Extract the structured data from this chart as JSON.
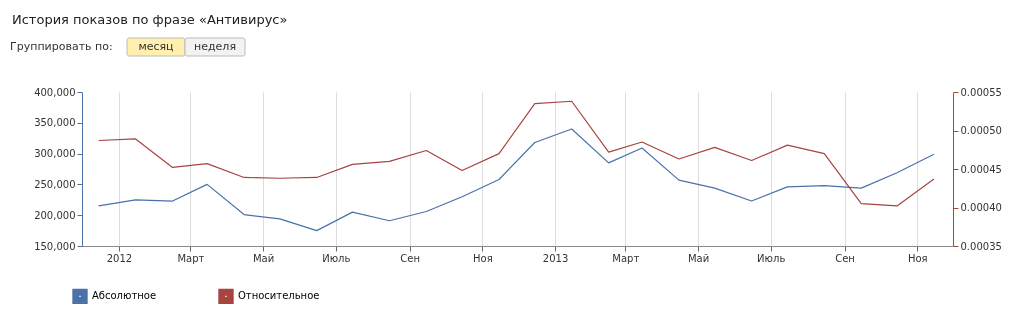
{
  "chart_data": {
    "type": "line",
    "title": "История показов по фразе «Антивирус»",
    "annotations": [
      "Группировать по:",
      "месяц",
      "неделя"
    ],
    "x": [
      "2011-12-15",
      "2012-01-15",
      "2012-02-15",
      "2012-03-15",
      "2012-04-15",
      "2012-05-15",
      "2012-06-15",
      "2012-07-15",
      "2012-08-15",
      "2012-09-15",
      "2012-10-15",
      "2012-11-15",
      "2012-12-15",
      "2013-01-15",
      "2013-02-15",
      "2013-03-15",
      "2013-04-15",
      "2013-05-15",
      "2013-06-15",
      "2013-07-15",
      "2013-08-15",
      "2013-09-15",
      "2013-10-15",
      "2013-11-15"
    ],
    "series": [
      {
        "name": "Абсолютное",
        "color": "#4a72a8",
        "values": [
          215000,
          225000,
          223000,
          250000,
          201000,
          194000,
          175000,
          205000,
          191000,
          206000,
          230000,
          258000,
          318000,
          340000,
          285000,
          309000,
          257000,
          244000,
          223000,
          246000,
          248000,
          244000,
          269000,
          299000
        ]
      },
      {
        "name": "Относительное",
        "color": "#a8443f",
        "axis": "y2",
        "values": [
          0.000487,
          0.000489,
          0.000452,
          0.000457,
          0.000439,
          0.000438,
          0.000439,
          0.000456,
          0.00046,
          0.000474,
          0.000448,
          0.00047,
          0.000535,
          0.000538,
          0.000472,
          0.000485,
          0.000463,
          0.000478,
          0.000461,
          0.000481,
          0.00047,
          0.000405,
          0.000402,
          0.000437
        ]
      }
    ],
    "xlim": [
      "2011-12-01",
      "2013-12-01"
    ],
    "xticks": [
      {
        "value": "2012-01-01",
        "label": "2012"
      },
      {
        "value": "2012-03-01",
        "label": "Март"
      },
      {
        "value": "2012-05-01",
        "label": "Май"
      },
      {
        "value": "2012-07-01",
        "label": "Июль"
      },
      {
        "value": "2012-09-01",
        "label": "Сен"
      },
      {
        "value": "2012-11-01",
        "label": "Ноя"
      },
      {
        "value": "2013-01-01",
        "label": "2013"
      },
      {
        "value": "2013-03-01",
        "label": "Март"
      },
      {
        "value": "2013-05-01",
        "label": "Май"
      },
      {
        "value": "2013-07-01",
        "label": "Июль"
      },
      {
        "value": "2013-09-01",
        "label": "Сен"
      },
      {
        "value": "2013-11-01",
        "label": "Ноя"
      }
    ],
    "ylim": [
      150000,
      400000
    ],
    "yticks": [
      {
        "value": 150000,
        "label": "150,000"
      },
      {
        "value": 200000,
        "label": "200,000"
      },
      {
        "value": 250000,
        "label": "250,000"
      },
      {
        "value": 300000,
        "label": "300,000"
      },
      {
        "value": 350000,
        "label": "350,000"
      },
      {
        "value": 400000,
        "label": "400,000"
      }
    ],
    "y2lim": [
      0.00035,
      0.00055
    ],
    "y2ticks": [
      {
        "value": 0.00035,
        "label": "0.00035"
      },
      {
        "value": 0.0004,
        "label": "0.00040"
      },
      {
        "value": 0.00045,
        "label": "0.00045"
      },
      {
        "value": 0.0005,
        "label": "0.00050"
      },
      {
        "value": 0.00055,
        "label": "0.00055"
      }
    ],
    "grid": "x",
    "legend": "bottom left",
    "marker": "none",
    "line_style": "solid"
  }
}
